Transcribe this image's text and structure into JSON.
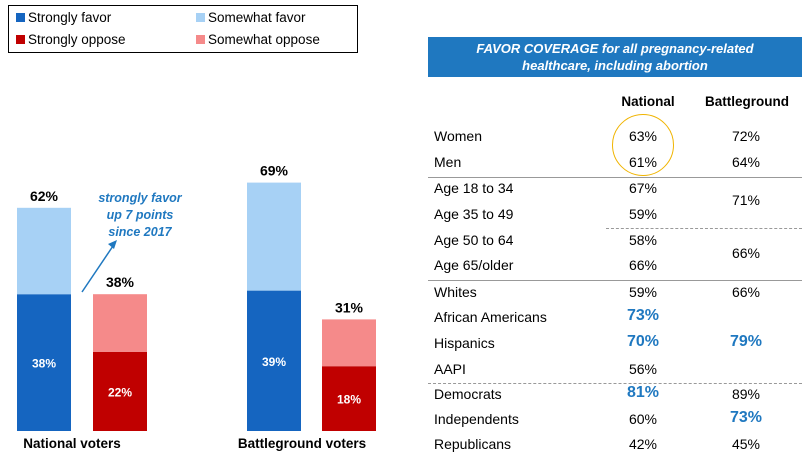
{
  "chart_data": {
    "type": "bar",
    "stacked": true,
    "categories": [
      "National voters",
      "Battleground voters"
    ],
    "groups": [
      {
        "category": "National voters",
        "favor": {
          "total_label": "62%",
          "strongly": 38,
          "somewhat": 24,
          "strongly_label": "38%"
        },
        "oppose": {
          "total_label": "38%",
          "strongly": 22,
          "somewhat": 16,
          "strongly_label": "22%"
        }
      },
      {
        "category": "Battleground voters",
        "favor": {
          "total_label": "69%",
          "strongly": 39,
          "somewhat": 30,
          "strongly_label": "39%"
        },
        "oppose": {
          "total_label": "31%",
          "strongly": 18,
          "somewhat": 13,
          "strongly_label": "18%"
        }
      }
    ],
    "legend": [
      {
        "name": "Strongly favor",
        "color": "#1565c0"
      },
      {
        "name": "Somewhat favor",
        "color": "#a7d1f5"
      },
      {
        "name": "Strongly oppose",
        "color": "#c00000"
      },
      {
        "name": "Somewhat oppose",
        "color": "#f58a8a"
      }
    ],
    "annotation": "strongly favor up 7 points since 2017",
    "annotation_lines": [
      "strongly favor",
      "up 7 points",
      "since 2017"
    ],
    "ylim": [
      0,
      100
    ]
  },
  "table": {
    "title_lines": [
      "FAVOR COVERAGE for all pregnancy-related",
      "healthcare, including abortion"
    ],
    "col_national": "National",
    "col_battleground": "Battleground",
    "rows": [
      {
        "label": "Women",
        "national": "63%",
        "battleground": "72%"
      },
      {
        "label": "Men",
        "national": "61%",
        "battleground": "64%"
      },
      {
        "label": "Age 18 to 34",
        "national": "67%",
        "battleground": "71%"
      },
      {
        "label": "Age 35 to 49",
        "national": "59%",
        "battleground": ""
      },
      {
        "label": "Age 50 to 64",
        "national": "58%",
        "battleground": "66%"
      },
      {
        "label": "Age 65/older",
        "national": "66%",
        "battleground": ""
      },
      {
        "label": "Whites",
        "national": "59%",
        "battleground": "66%"
      },
      {
        "label": "African Americans",
        "national": "73%",
        "battleground": ""
      },
      {
        "label": "Hispanics",
        "national": "70%",
        "battleground": "79%"
      },
      {
        "label": "AAPI",
        "national": "56%",
        "battleground": ""
      },
      {
        "label": "Democrats",
        "national": "81%",
        "battleground": "89%"
      },
      {
        "label": "Independents",
        "national": "60%",
        "battleground": "73%"
      },
      {
        "label": "Republicans",
        "national": "42%",
        "battleground": "45%"
      }
    ]
  }
}
